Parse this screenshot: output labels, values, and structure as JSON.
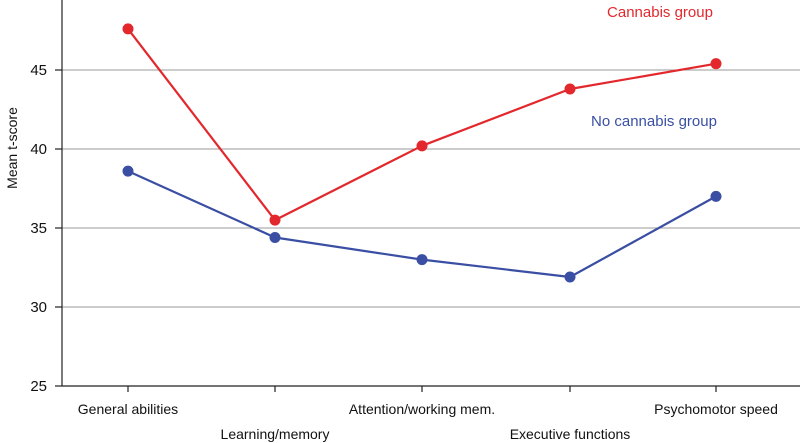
{
  "chart_data": {
    "type": "line",
    "ylabel": "Mean t-score",
    "xlabel": "",
    "ylim": [
      25,
      49
    ],
    "yticks": [
      25,
      30,
      35,
      40,
      45
    ],
    "grid": true,
    "categories": [
      "General abilities",
      "Learning/memory",
      "Attention/working mem.",
      "Executive functions",
      "Psychomotor speed"
    ],
    "series": [
      {
        "name": "Cannabis group",
        "color": "#e3282d",
        "values": [
          47.6,
          35.5,
          40.2,
          43.8,
          45.4
        ]
      },
      {
        "name": "No cannabis group",
        "color": "#3a4fa3",
        "values": [
          38.6,
          34.4,
          33.0,
          31.9,
          37.0
        ]
      }
    ]
  }
}
